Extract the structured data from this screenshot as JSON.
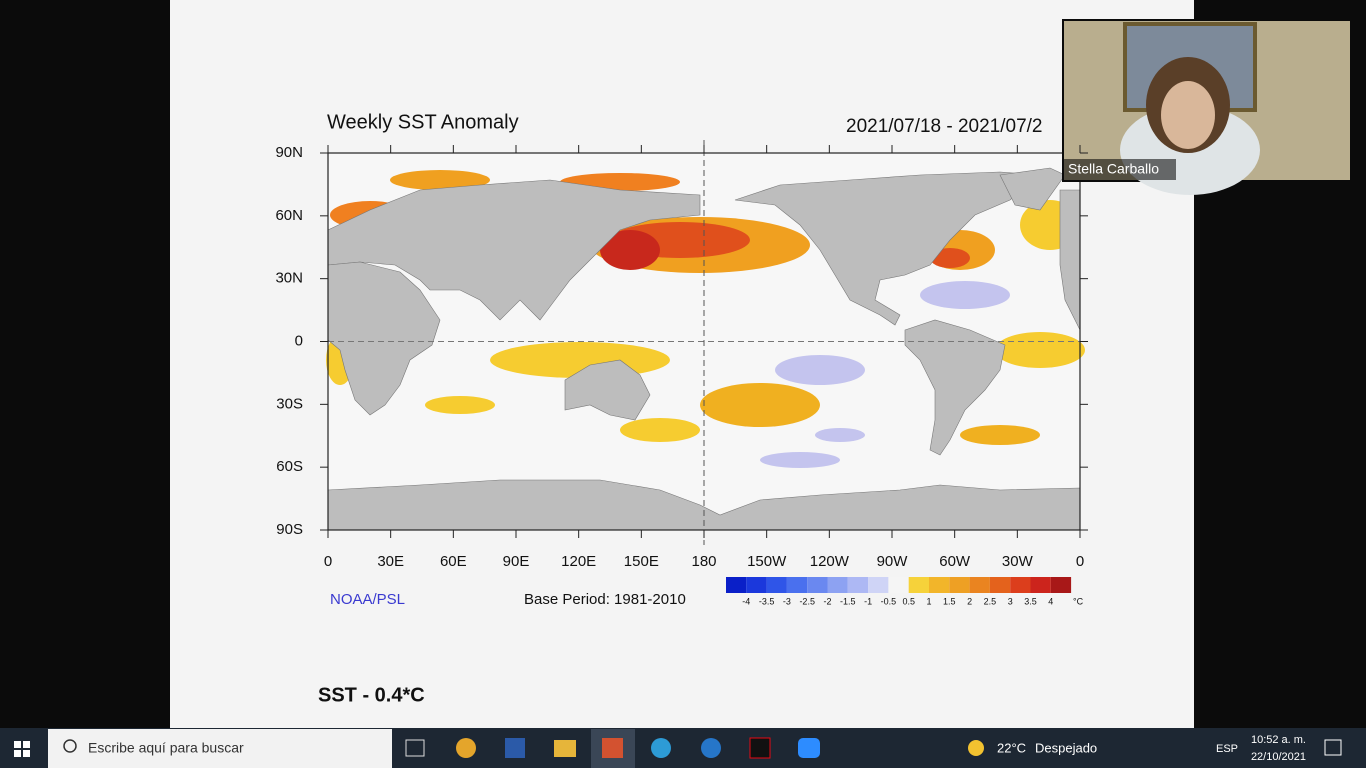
{
  "slide": {
    "map_title": "Weekly SST Anomaly",
    "date_range": "2021/07/18 - 2021/07/2",
    "lat_labels": [
      "90N",
      "60N",
      "30N",
      "0",
      "30S",
      "60S",
      "90S"
    ],
    "lon_labels": [
      "0",
      "30E",
      "60E",
      "90E",
      "120E",
      "150E",
      "180",
      "150W",
      "120W",
      "90W",
      "60W",
      "30W",
      "0"
    ],
    "source": "NOAA/PSL",
    "base_period": "Base Period: 1981-2010",
    "colorbar_labels": [
      "-4",
      "-3.5",
      "-3",
      "-2.5",
      "-2",
      "-1.5",
      "-1",
      "-0.5",
      "0.5",
      "1",
      "1.5",
      "2",
      "2.5",
      "3",
      "3.5",
      "4"
    ],
    "colorbar_unit": "°C",
    "note": "SST - 0.4*C"
  },
  "video": {
    "participant_name": "Stella Carballo"
  },
  "taskbar": {
    "search_placeholder": "Escribe aquí para buscar",
    "temperature": "22°C",
    "condition": "Despejado",
    "language": "ESP",
    "time": "10:52 a. m.",
    "date": "22/10/2021"
  }
}
